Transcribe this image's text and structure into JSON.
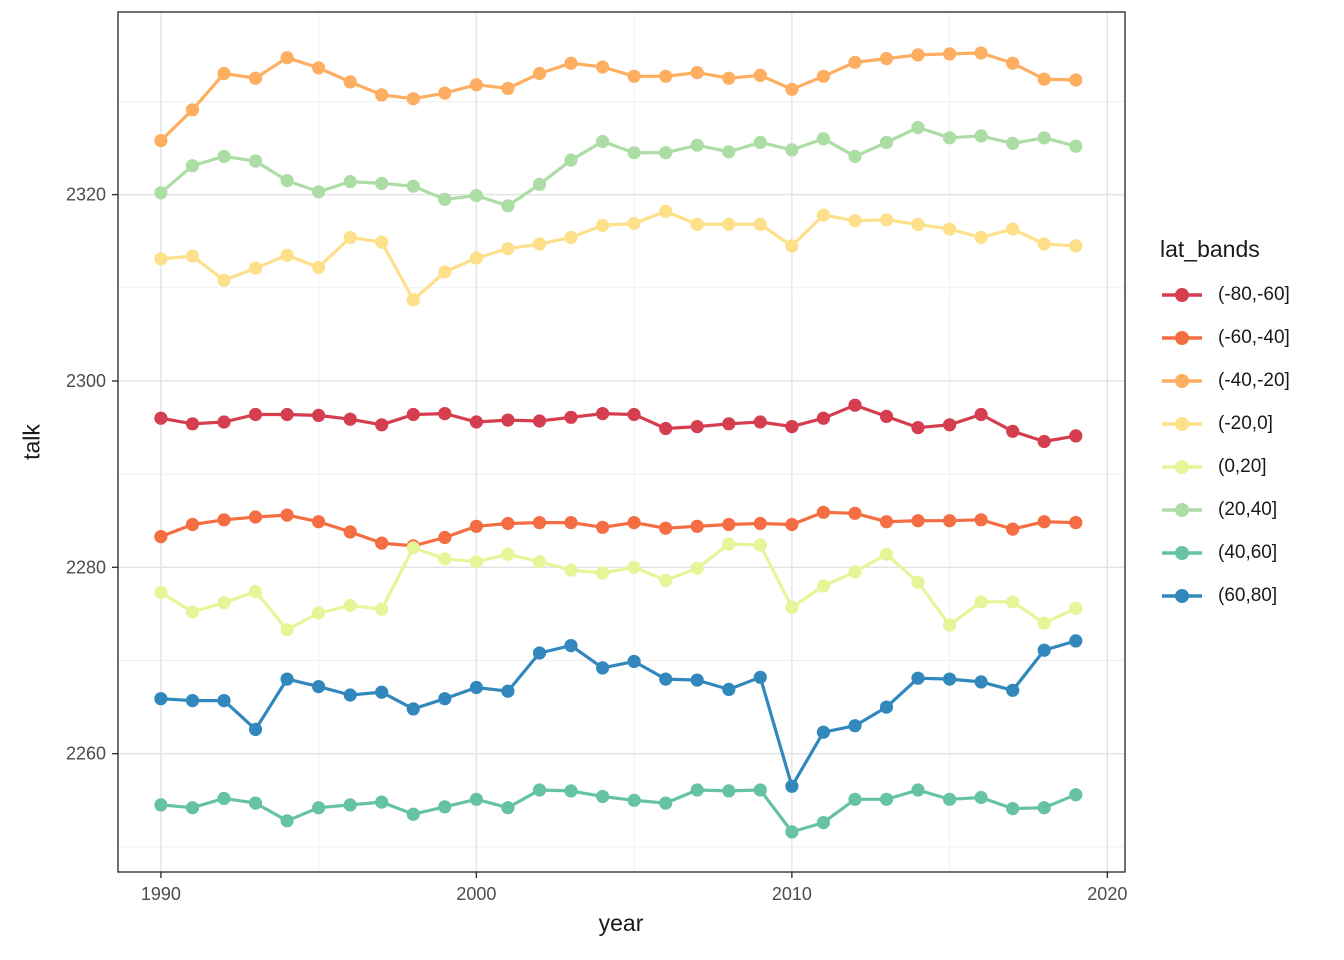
{
  "chart_data": {
    "type": "line",
    "title": "",
    "xlabel": "year",
    "ylabel": "talk",
    "legend_title": "lat_bands",
    "legend_position": "right",
    "grid": "on",
    "x_range": [
      1988.64,
      2020.56
    ],
    "y_range": [
      2247.3,
      2339.6
    ],
    "x_ticks": [
      1990,
      2000,
      2010,
      2020
    ],
    "x_minor_ticks": [
      1995,
      2005,
      2015
    ],
    "y_ticks": [
      2260,
      2280,
      2300,
      2320
    ],
    "y_minor_ticks": [
      2250,
      2270,
      2290,
      2310,
      2330
    ],
    "x": [
      1990,
      1991,
      1992,
      1993,
      1994,
      1995,
      1996,
      1997,
      1998,
      1999,
      2000,
      2001,
      2002,
      2003,
      2004,
      2005,
      2006,
      2007,
      2008,
      2009,
      2010,
      2011,
      2012,
      2013,
      2014,
      2015,
      2016,
      2017,
      2018,
      2019
    ],
    "series": [
      {
        "name": "(-80,-60]",
        "color": "#D53E4F",
        "values": [
          2296.0,
          2295.4,
          2295.6,
          2296.4,
          2296.4,
          2296.3,
          2295.9,
          2295.3,
          2296.4,
          2296.5,
          2295.6,
          2295.8,
          2295.7,
          2296.1,
          2296.5,
          2296.4,
          2294.9,
          2295.1,
          2295.4,
          2295.6,
          2295.1,
          2296.0,
          2297.4,
          2296.2,
          2295.0,
          2295.3,
          2296.4,
          2294.6,
          2293.5,
          2294.1
        ]
      },
      {
        "name": "(-60,-40]",
        "color": "#F46D43",
        "values": [
          2283.3,
          2284.6,
          2285.1,
          2285.4,
          2285.6,
          2284.9,
          2283.8,
          2282.6,
          2282.3,
          2283.2,
          2284.4,
          2284.7,
          2284.8,
          2284.8,
          2284.3,
          2284.8,
          2284.2,
          2284.4,
          2284.6,
          2284.7,
          2284.6,
          2285.9,
          2285.8,
          2284.9,
          2285.0,
          2285.0,
          2285.1,
          2284.1,
          2284.9,
          2284.8
        ]
      },
      {
        "name": "(-40,-20]",
        "color": "#FDAE61",
        "values": [
          2325.8,
          2329.1,
          2333.0,
          2332.5,
          2334.7,
          2333.6,
          2332.1,
          2330.7,
          2330.3,
          2330.9,
          2331.8,
          2331.4,
          2333.0,
          2334.1,
          2333.7,
          2332.7,
          2332.7,
          2333.1,
          2332.5,
          2332.8,
          2331.3,
          2332.7,
          2334.2,
          2334.6,
          2335.0,
          2335.1,
          2335.2,
          2334.1,
          2332.4,
          2332.3
        ]
      },
      {
        "name": "(-20,0]",
        "color": "#FEE08B",
        "values": [
          2313.1,
          2313.4,
          2310.8,
          2312.1,
          2313.5,
          2312.2,
          2315.4,
          2314.9,
          2308.7,
          2311.7,
          2313.2,
          2314.2,
          2314.7,
          2315.4,
          2316.7,
          2316.9,
          2318.2,
          2316.8,
          2316.8,
          2316.8,
          2314.5,
          2317.8,
          2317.2,
          2317.3,
          2316.8,
          2316.3,
          2315.4,
          2316.3,
          2314.7,
          2314.5
        ]
      },
      {
        "name": "(0,20]",
        "color": "#E6F598",
        "values": [
          2277.3,
          2275.2,
          2276.2,
          2277.4,
          2273.3,
          2275.1,
          2275.9,
          2275.5,
          2282.1,
          2280.9,
          2280.6,
          2281.4,
          2280.6,
          2279.7,
          2279.4,
          2280.0,
          2278.6,
          2279.9,
          2282.5,
          2282.4,
          2275.7,
          2278.0,
          2279.5,
          2281.4,
          2278.4,
          2273.8,
          2276.3,
          2276.3,
          2274.0,
          2275.6
        ]
      },
      {
        "name": "(20,40]",
        "color": "#ABDDA4",
        "values": [
          2320.2,
          2323.1,
          2324.1,
          2323.6,
          2321.5,
          2320.3,
          2321.4,
          2321.2,
          2320.9,
          2319.5,
          2319.9,
          2318.8,
          2321.1,
          2323.7,
          2325.7,
          2324.5,
          2324.5,
          2325.3,
          2324.6,
          2325.6,
          2324.8,
          2326.0,
          2324.1,
          2325.6,
          2327.2,
          2326.1,
          2326.3,
          2325.5,
          2326.1,
          2325.2
        ]
      },
      {
        "name": "(40,60]",
        "color": "#66C2A5",
        "values": [
          2254.5,
          2254.2,
          2255.2,
          2254.7,
          2252.8,
          2254.2,
          2254.5,
          2254.8,
          2253.5,
          2254.3,
          2255.1,
          2254.2,
          2256.1,
          2256.0,
          2255.4,
          2255.0,
          2254.7,
          2256.1,
          2256.0,
          2256.1,
          2251.6,
          2252.6,
          2255.1,
          2255.1,
          2256.1,
          2255.1,
          2255.3,
          2254.1,
          2254.2,
          2255.6
        ]
      },
      {
        "name": "(60,80]",
        "color": "#3288BD",
        "values": [
          2265.9,
          2265.7,
          2265.7,
          2262.6,
          2268.0,
          2267.2,
          2266.3,
          2266.6,
          2264.8,
          2265.9,
          2267.1,
          2266.7,
          2270.8,
          2271.6,
          2269.2,
          2269.9,
          2268.0,
          2267.9,
          2266.9,
          2268.2,
          2256.5,
          2262.3,
          2263.0,
          2265.0,
          2268.1,
          2268.0,
          2267.7,
          2266.8,
          2271.1,
          2272.1
        ]
      }
    ],
    "colors": {
      "panel_bg": "#FFFFFF",
      "grid_major": "#E3E3E3",
      "grid_minor": "#F1F1F1",
      "panel_border": "#333333",
      "tick_mark": "#333333",
      "tick_label": "#4D4D4D",
      "axis_title": "#1A1A1A"
    }
  }
}
